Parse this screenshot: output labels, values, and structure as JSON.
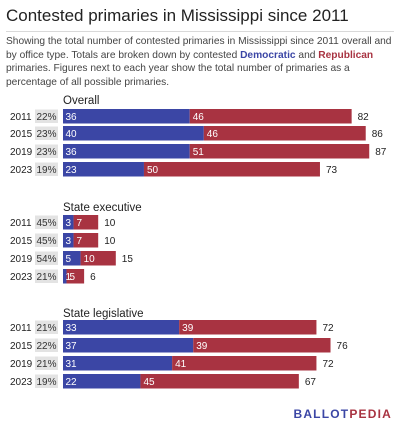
{
  "title": "Contested primaries in Mississippi since 2011",
  "subtitle": {
    "part1": "Showing the total number of contested primaries in Mississippi since 2011 overall and by office type. Totals are broken down by contested ",
    "dem": "Democratic",
    "and": " and ",
    "rep": "Republican",
    "part2": " primaries. Figures next to each year show the total number of primaries as a percentage of all possible primaries."
  },
  "colors": {
    "democratic": "#3b46a5",
    "republican": "#a83341",
    "pct_bg": "#e3e3e3"
  },
  "logo": {
    "part1": "BALLOT",
    "part2": "PEDIA"
  },
  "chart_data": {
    "type": "bar",
    "stacked": true,
    "orientation": "horizontal",
    "groups": [
      {
        "title": "Overall",
        "rows": [
          {
            "year": "2011",
            "pct": "22%",
            "dem": 36,
            "rep": 46,
            "total": 82
          },
          {
            "year": "2015",
            "pct": "23%",
            "dem": 40,
            "rep": 46,
            "total": 86
          },
          {
            "year": "2019",
            "pct": "23%",
            "dem": 36,
            "rep": 51,
            "total": 87
          },
          {
            "year": "2023",
            "pct": "19%",
            "dem": 23,
            "rep": 50,
            "total": 73
          }
        ]
      },
      {
        "title": "State executive",
        "rows": [
          {
            "year": "2011",
            "pct": "45%",
            "dem": 3,
            "rep": 7,
            "total": 10
          },
          {
            "year": "2015",
            "pct": "45%",
            "dem": 3,
            "rep": 7,
            "total": 10
          },
          {
            "year": "2019",
            "pct": "54%",
            "dem": 5,
            "rep": 10,
            "total": 15
          },
          {
            "year": "2023",
            "pct": "21%",
            "dem": 1,
            "rep": 5,
            "total": 6
          }
        ]
      },
      {
        "title": "State legislative",
        "rows": [
          {
            "year": "2011",
            "pct": "21%",
            "dem": 33,
            "rep": 39,
            "total": 72
          },
          {
            "year": "2015",
            "pct": "22%",
            "dem": 37,
            "rep": 39,
            "total": 76
          },
          {
            "year": "2019",
            "pct": "21%",
            "dem": 31,
            "rep": 41,
            "total": 72
          },
          {
            "year": "2023",
            "pct": "19%",
            "dem": 22,
            "rep": 45,
            "total": 67
          }
        ]
      }
    ]
  }
}
